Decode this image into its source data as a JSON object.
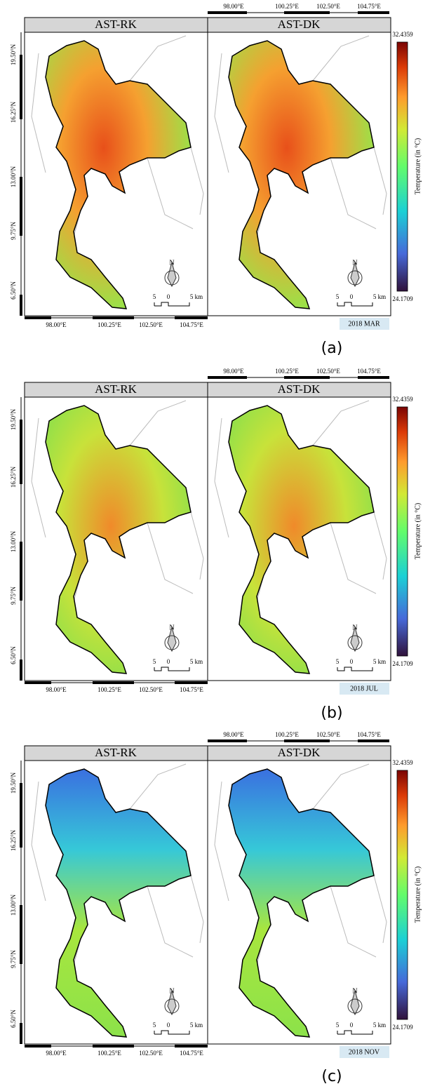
{
  "panels": [
    {
      "label": "(a)",
      "date": "2018 MAR",
      "maps": [
        "AST-RK",
        "AST-DK"
      ]
    },
    {
      "label": "(b)",
      "date": "2018 JUL",
      "maps": [
        "AST-RK",
        "AST-DK"
      ]
    },
    {
      "label": "(c)",
      "date": "2018 NOV",
      "maps": [
        "AST-RK",
        "AST-DK"
      ]
    }
  ],
  "lon_ticks": [
    "98.00°E",
    "100.25°E",
    "102.50°E",
    "104.75°E"
  ],
  "lat_ticks": [
    "19.50°N",
    "16.25°N",
    "13.00°N",
    "9.75°N",
    "6.50°N"
  ],
  "colorbar": {
    "max": "32.4359",
    "min": "24.1709",
    "label": "Temperature (in °C)"
  },
  "scale_bar": [
    "5",
    "0",
    "5 km"
  ],
  "north": "N"
}
